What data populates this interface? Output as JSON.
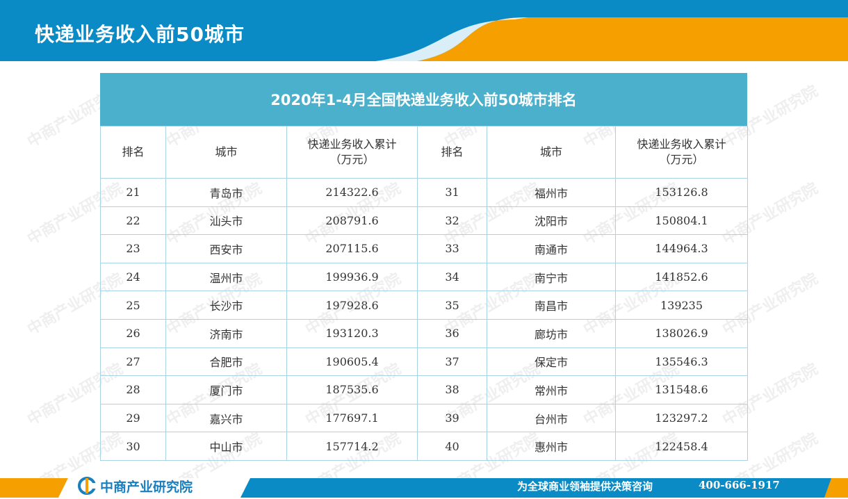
{
  "header": {
    "title": "快递业务收入前50城市",
    "colors": {
      "blue": "#0a8bc5",
      "orange": "#f5a000"
    }
  },
  "table": {
    "title": "2020年1-4月全国快递业务收入前50城市排名",
    "headers": [
      "排名",
      "城市",
      "快递业务收入累计\n（万元）",
      "排名",
      "城市",
      "快递业务收入累计\n（万元）"
    ],
    "rows": [
      [
        "21",
        "青岛市",
        "214322.6",
        "31",
        "福州市",
        "153126.8"
      ],
      [
        "22",
        "汕头市",
        "208791.6",
        "32",
        "沈阳市",
        "150804.1"
      ],
      [
        "23",
        "西安市",
        "207115.6",
        "33",
        "南通市",
        "144964.3"
      ],
      [
        "24",
        "温州市",
        "199936.9",
        "34",
        "南宁市",
        "141852.6"
      ],
      [
        "25",
        "长沙市",
        "197928.6",
        "35",
        "南昌市",
        "139235"
      ],
      [
        "26",
        "济南市",
        "193120.3",
        "36",
        "廊坊市",
        "138026.9"
      ],
      [
        "27",
        "合肥市",
        "190605.4",
        "37",
        "保定市",
        "135546.3"
      ],
      [
        "28",
        "厦门市",
        "187535.6",
        "38",
        "常州市",
        "131548.6"
      ],
      [
        "29",
        "嘉兴市",
        "177697.1",
        "39",
        "台州市",
        "123297.2"
      ],
      [
        "30",
        "中山市",
        "157714.2",
        "40",
        "惠州市",
        "122458.4"
      ]
    ]
  },
  "watermark": {
    "text": "中商产业研究院"
  },
  "footer": {
    "logo_text": "中商产业研究院",
    "slogan": "为全球商业领袖提供决策咨询",
    "phone": "400-666-1917"
  }
}
